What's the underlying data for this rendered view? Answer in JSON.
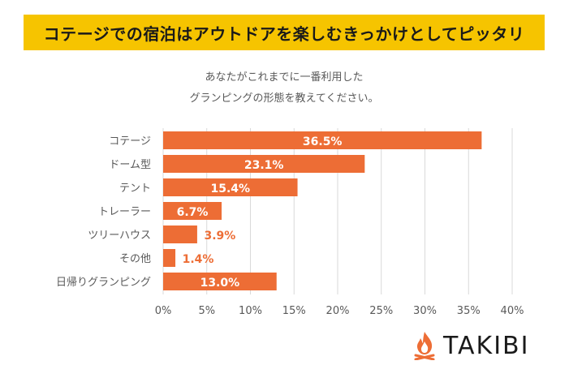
{
  "headline": "コテージでの宿泊はアウトドアを楽しむきっかけとしてピッタリ",
  "question_line1": "あなたがこれまでに一番利用した",
  "question_line2": "グランピングの形態を教えてください。",
  "brand": "TAKIBI",
  "colors": {
    "bar": "#ed6d35",
    "headline_bg": "#f6c400",
    "grid": "#d9d9d9",
    "label_inside": "#ffffff",
    "label_outside": "#ed6d35"
  },
  "chart_data": {
    "type": "bar",
    "orientation": "horizontal",
    "categories": [
      "コテージ",
      "ドーム型",
      "テント",
      "トレーラー",
      "ツリーハウス",
      "その他",
      "日帰りグランピング"
    ],
    "values": [
      36.5,
      23.1,
      15.4,
      6.7,
      3.9,
      1.4,
      13.0
    ],
    "data_labels": [
      "36.5%",
      "23.1%",
      "15.4%",
      "6.7%",
      "3.9%",
      "1.4%",
      "13.0%"
    ],
    "x_ticks": [
      "0%",
      "5%",
      "10%",
      "15%",
      "20%",
      "25%",
      "30%",
      "35%",
      "40%"
    ],
    "xlim": [
      0,
      40
    ],
    "grid": true
  }
}
